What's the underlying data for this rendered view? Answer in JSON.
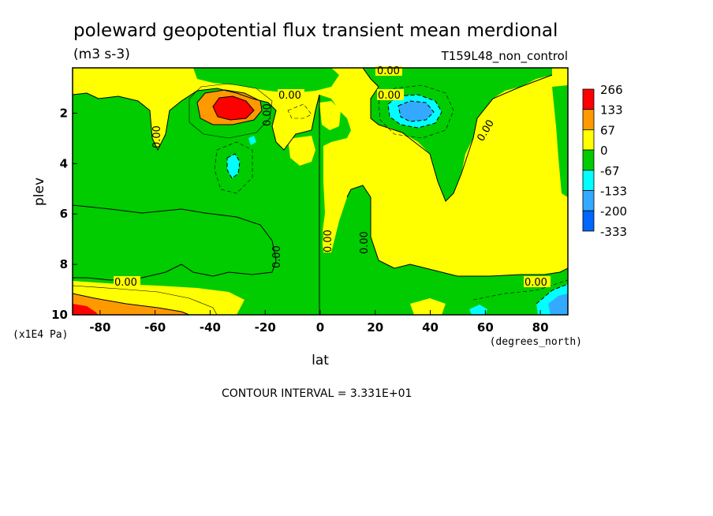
{
  "chart_data": {
    "type": "heatmap",
    "title": "poleward geopotential flux transient mean merdional",
    "units": "(m3 s-3)",
    "run_label": "T159L48_non_control",
    "xlabel": "lat",
    "xunits": "(degrees_north)",
    "ylabel": "plev",
    "yunits": "(x1E4 Pa)",
    "xlim": [
      -90,
      90
    ],
    "ylim": [
      10,
      0.2
    ],
    "x_ticks": [
      {
        "value": -80,
        "label": "-80"
      },
      {
        "value": -60,
        "label": "-60"
      },
      {
        "value": -40,
        "label": "-40"
      },
      {
        "value": -20,
        "label": "-20"
      },
      {
        "value": 0,
        "label": "0"
      },
      {
        "value": 20,
        "label": "20"
      },
      {
        "value": 40,
        "label": "40"
      },
      {
        "value": 60,
        "label": "60"
      },
      {
        "value": 80,
        "label": "80"
      }
    ],
    "y_ticks": [
      {
        "value": 2,
        "label": "2"
      },
      {
        "value": 4,
        "label": "4"
      },
      {
        "value": 6,
        "label": "6"
      },
      {
        "value": 8,
        "label": "8"
      },
      {
        "value": 10,
        "label": "10"
      }
    ],
    "contour_interval_text": "CONTOUR INTERVAL = 3.331E+01",
    "contour_zero_label": "0.00",
    "levels": [
      {
        "label": "266",
        "color": "#ff0000"
      },
      {
        "label": "133",
        "color": "#ff9900"
      },
      {
        "label": "67",
        "color": "#ffff00"
      },
      {
        "label": "0",
        "color": "#00cc00"
      },
      {
        "label": "-67",
        "color": "#00ffff"
      },
      {
        "label": "-133",
        "color": "#33aaff"
      },
      {
        "label": "-200",
        "color": "#0066ff"
      },
      {
        "label": "-333",
        "color": null
      }
    ],
    "colors": {
      "positive_low": "#ffff00",
      "positive_mid": "#ff9900",
      "positive_high": "#ff0000",
      "negative_low": "#00cc00",
      "negative_mid": "#00ffff",
      "negative_high": "#33aaff",
      "negative_max": "#0066ff"
    },
    "features": [
      {
        "name": "sh-upper-max",
        "lat": -33,
        "plev": 1.8,
        "value": 266
      },
      {
        "name": "nh-upper-min",
        "lat": 35,
        "plev": 1.8,
        "value": -150
      },
      {
        "name": "sh-surface-max",
        "lat": -88,
        "plev": 9.9,
        "value": 200
      },
      {
        "name": "nh-surface-min",
        "lat": 88,
        "plev": 9.6,
        "value": -150
      },
      {
        "name": "sh-mid-min",
        "lat": -33,
        "plev": 4.0,
        "value": -100
      }
    ]
  }
}
